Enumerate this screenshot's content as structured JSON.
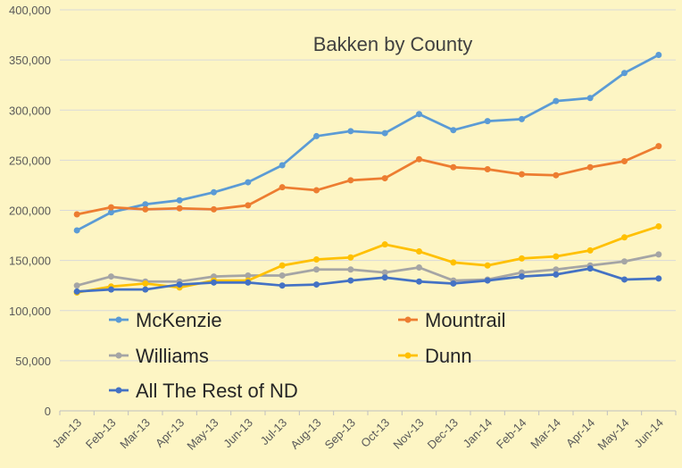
{
  "chart_data": {
    "type": "line",
    "title": "Bakken by County",
    "xlabel": "",
    "ylabel": "",
    "ylim": [
      0,
      400000
    ],
    "yticks": [
      0,
      50000,
      100000,
      150000,
      200000,
      250000,
      300000,
      350000,
      400000
    ],
    "ytick_labels": [
      "0",
      "50,000",
      "100,000",
      "150,000",
      "200,000",
      "250,000",
      "300,000",
      "350,000",
      "400,000"
    ],
    "grid": true,
    "legend_placement": "lower-left inside plot",
    "categories": [
      "Jan-13",
      "Feb-13",
      "Mar-13",
      "Apr-13",
      "May-13",
      "Jun-13",
      "Jul-13",
      "Aug-13",
      "Sep-13",
      "Oct-13",
      "Nov-13",
      "Dec-13",
      "Jan-14",
      "Feb-14",
      "Mar-14",
      "Apr-14",
      "May-14",
      "Jun-14"
    ],
    "series": [
      {
        "name": "McKenzie",
        "color": "#5b9bd5",
        "values": [
          180000,
          198000,
          206000,
          210000,
          218000,
          228000,
          245000,
          274000,
          279000,
          277000,
          296000,
          280000,
          289000,
          291000,
          309000,
          312000,
          337000,
          355000
        ]
      },
      {
        "name": "Mountrail",
        "color": "#ed7d31",
        "values": [
          196000,
          203000,
          201000,
          202000,
          201000,
          205000,
          223000,
          220000,
          230000,
          232000,
          251000,
          243000,
          241000,
          236000,
          235000,
          243000,
          249000,
          264000
        ]
      },
      {
        "name": "Williams",
        "color": "#a5a5a5",
        "values": [
          125000,
          134000,
          129000,
          129000,
          134000,
          135000,
          135000,
          141000,
          141000,
          138000,
          143000,
          130000,
          131000,
          138000,
          141000,
          145000,
          149000,
          156000
        ]
      },
      {
        "name": "Dunn",
        "color": "#ffc000",
        "values": [
          118000,
          124000,
          127000,
          123000,
          130000,
          130000,
          145000,
          151000,
          153000,
          166000,
          159000,
          148000,
          145000,
          152000,
          154000,
          160000,
          173000,
          184000
        ]
      },
      {
        "name": "All The Rest of ND",
        "color": "#4472c4",
        "values": [
          119000,
          121000,
          121000,
          126000,
          128000,
          128000,
          125000,
          126000,
          130000,
          133000,
          129000,
          127000,
          130000,
          134000,
          136000,
          142000,
          131000,
          132000
        ]
      }
    ]
  }
}
